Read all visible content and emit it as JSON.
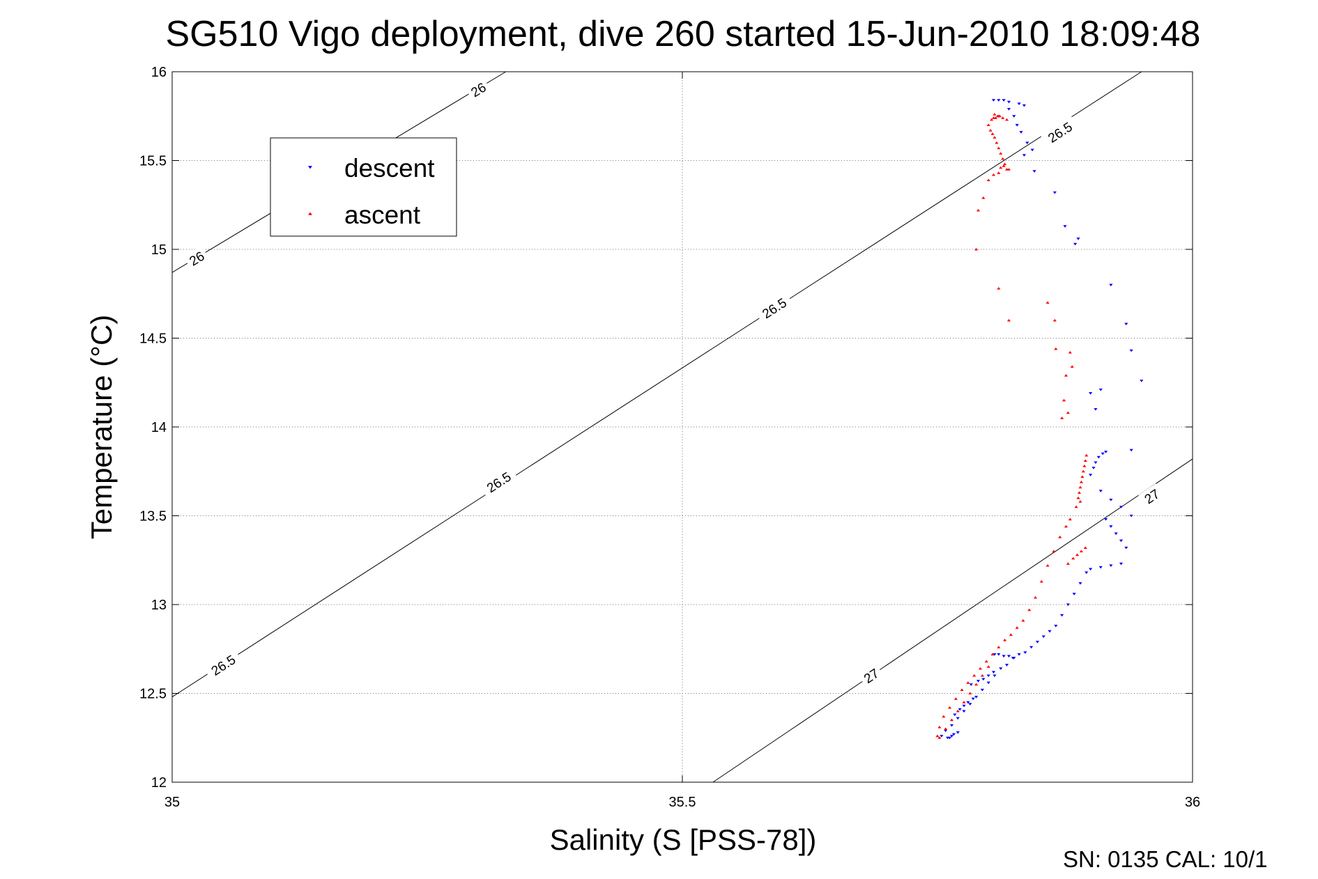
{
  "chart_data": {
    "type": "scatter",
    "title": "SG510 Vigo deployment, dive 260 started 15-Jun-2010 18:09:48",
    "xlabel": "Salinity (S [PSS-78])",
    "ylabel": "Temperature (°C)",
    "xlim": [
      35,
      36
    ],
    "ylim": [
      12,
      16
    ],
    "x_ticks": [
      "35",
      "35.5",
      "36"
    ],
    "y_ticks": [
      "12",
      "12.5",
      "13",
      "13.5",
      "14",
      "14.5",
      "15",
      "15.5",
      "16"
    ],
    "grid": true,
    "legend_position": "top-left",
    "footer": "SN: 0135  CAL: 10/1",
    "density_contours": [
      {
        "sigma": 26,
        "x": [
          35.0,
          35.327
        ],
        "y": [
          14.87,
          16.0
        ],
        "labels": [
          {
            "text": "26",
            "x": 35.024,
            "y": 14.95
          },
          {
            "text": "26",
            "x": 35.3,
            "y": 15.9
          }
        ]
      },
      {
        "sigma": 26.5,
        "x": [
          35.0,
          35.95
        ],
        "y": [
          12.48,
          16.0
        ],
        "labels": [
          {
            "text": "26.5",
            "x": 35.05,
            "y": 12.66
          },
          {
            "text": "26.5",
            "x": 35.32,
            "y": 13.69
          },
          {
            "text": "26.5",
            "x": 35.59,
            "y": 14.67
          },
          {
            "text": "26.5",
            "x": 35.87,
            "y": 15.66
          }
        ]
      },
      {
        "sigma": 27,
        "x": [
          35.53,
          36.0
        ],
        "y": [
          12.0,
          13.82
        ],
        "labels": [
          {
            "text": "27",
            "x": 35.685,
            "y": 12.6
          },
          {
            "text": "27",
            "x": 35.96,
            "y": 13.61
          }
        ]
      }
    ],
    "series": [
      {
        "name": "descent",
        "color": "#0000ff",
        "marker": "triangle-down",
        "x": [
          35.805,
          35.81,
          35.815,
          35.82,
          35.83,
          35.835,
          35.82,
          35.825,
          35.828,
          35.832,
          35.838,
          35.843,
          35.835,
          35.845,
          35.865,
          35.875,
          35.885,
          35.888,
          35.92,
          35.935,
          35.94,
          35.95,
          35.9,
          35.905,
          35.91,
          35.94,
          35.915,
          35.912,
          35.908,
          35.905,
          35.903,
          35.9,
          35.91,
          35.92,
          35.93,
          35.94,
          35.915,
          35.92,
          35.925,
          35.93,
          35.935,
          35.9,
          35.91,
          35.92,
          35.93,
          35.896,
          35.89,
          35.884,
          35.878,
          35.872,
          35.866,
          35.86,
          35.854,
          35.848,
          35.842,
          35.836,
          35.83,
          35.824,
          35.818,
          35.812,
          35.806,
          35.8,
          35.794,
          35.788,
          35.782,
          35.776,
          35.77,
          35.764,
          35.758,
          35.754,
          35.806,
          35.81,
          35.815,
          35.82,
          35.825,
          35.783,
          35.79,
          35.795,
          35.8,
          35.805,
          35.767,
          35.772,
          35.776,
          35.78,
          35.785,
          35.76,
          35.762,
          35.764,
          35.766,
          35.77
        ],
        "y": [
          15.84,
          15.84,
          15.84,
          15.83,
          15.82,
          15.81,
          15.79,
          15.75,
          15.7,
          15.66,
          15.6,
          15.56,
          15.53,
          15.44,
          15.32,
          15.13,
          15.03,
          15.06,
          14.8,
          14.58,
          14.43,
          14.26,
          14.19,
          14.1,
          14.21,
          13.87,
          13.86,
          13.85,
          13.83,
          13.8,
          13.77,
          13.73,
          13.64,
          13.59,
          13.55,
          13.5,
          13.48,
          13.44,
          13.4,
          13.36,
          13.32,
          13.2,
          13.21,
          13.22,
          13.23,
          13.18,
          13.12,
          13.06,
          13.0,
          12.94,
          12.88,
          12.85,
          12.82,
          12.79,
          12.76,
          12.73,
          12.72,
          12.7,
          12.66,
          12.64,
          12.6,
          12.56,
          12.52,
          12.48,
          12.44,
          12.4,
          12.36,
          12.32,
          12.29,
          12.26,
          12.72,
          12.72,
          12.71,
          12.71,
          12.7,
          12.55,
          12.57,
          12.58,
          12.6,
          12.62,
          12.38,
          12.41,
          12.43,
          12.45,
          12.47,
          12.25,
          12.25,
          12.26,
          12.27,
          12.28
        ]
      },
      {
        "name": "ascent",
        "color": "#ff0000",
        "marker": "triangle-up",
        "x": [
          35.805,
          35.807,
          35.809,
          35.811,
          35.803,
          35.806,
          35.81,
          35.814,
          35.818,
          35.8,
          35.802,
          35.804,
          35.806,
          35.808,
          35.81,
          35.812,
          35.814,
          35.816,
          35.812,
          35.818,
          35.82,
          35.815,
          35.81,
          35.805,
          35.8,
          35.79,
          35.795,
          35.788,
          35.81,
          35.82,
          35.858,
          35.865,
          35.866,
          35.88,
          35.882,
          35.876,
          35.874,
          35.878,
          35.872,
          35.896,
          35.895,
          35.894,
          35.893,
          35.892,
          35.891,
          35.89,
          35.889,
          35.888,
          35.89,
          35.886,
          35.88,
          35.876,
          35.87,
          35.864,
          35.858,
          35.852,
          35.846,
          35.84,
          35.834,
          35.828,
          35.822,
          35.816,
          35.81,
          35.804,
          35.798,
          35.792,
          35.786,
          35.78,
          35.774,
          35.768,
          35.762,
          35.756,
          35.752,
          35.75,
          35.752,
          35.758,
          35.764,
          35.77,
          35.776,
          35.782,
          35.788,
          35.794,
          35.8,
          35.878,
          35.883,
          35.887,
          35.891,
          35.895
        ],
        "y": [
          15.74,
          15.74,
          15.75,
          15.75,
          15.73,
          15.76,
          15.75,
          15.74,
          15.73,
          15.7,
          15.67,
          15.65,
          15.63,
          15.6,
          15.57,
          15.54,
          15.51,
          15.48,
          15.46,
          15.45,
          15.45,
          15.47,
          15.43,
          15.42,
          15.39,
          15.22,
          15.29,
          15.0,
          14.78,
          14.6,
          14.7,
          14.6,
          14.44,
          14.42,
          14.34,
          14.29,
          14.15,
          14.08,
          14.05,
          13.84,
          13.81,
          13.78,
          13.75,
          13.72,
          13.69,
          13.66,
          13.63,
          13.6,
          13.58,
          13.55,
          13.48,
          13.44,
          13.38,
          13.3,
          13.22,
          13.13,
          13.04,
          12.97,
          12.91,
          12.87,
          12.83,
          12.8,
          12.76,
          12.72,
          12.68,
          12.64,
          12.6,
          12.56,
          12.52,
          12.47,
          12.42,
          12.37,
          12.31,
          12.26,
          12.25,
          12.3,
          12.35,
          12.4,
          12.45,
          12.5,
          12.55,
          12.6,
          12.65,
          13.23,
          13.26,
          13.28,
          13.3,
          13.32
        ]
      }
    ]
  }
}
